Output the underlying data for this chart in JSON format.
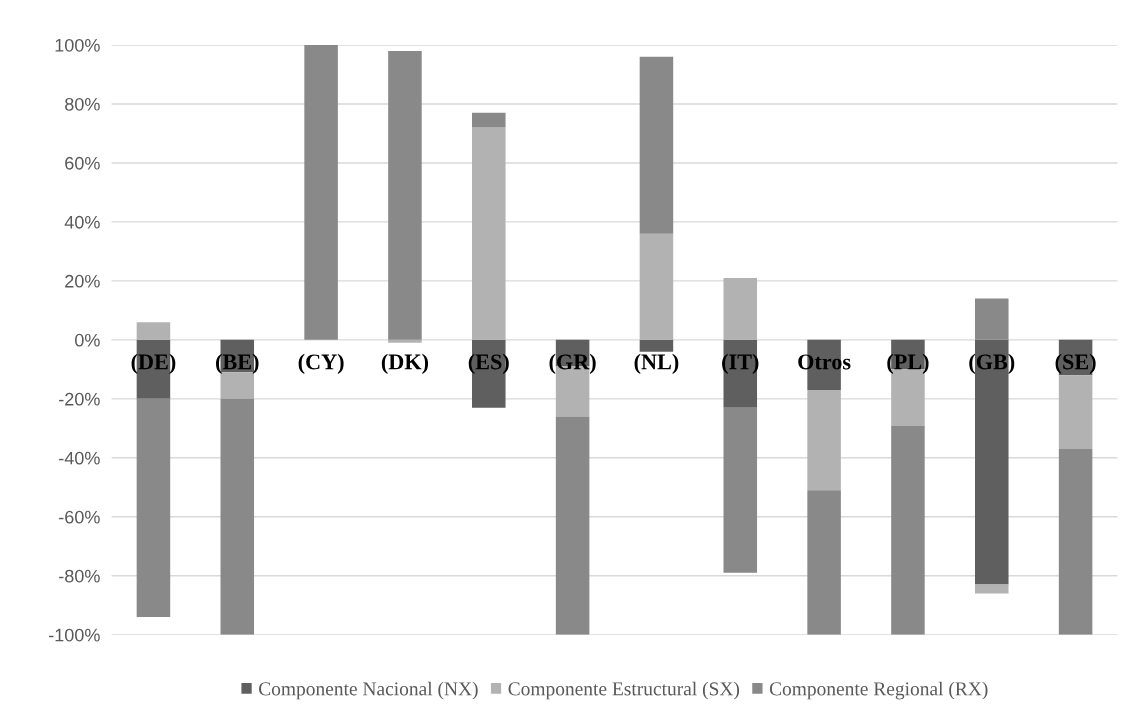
{
  "chart_data": {
    "type": "bar",
    "stacked": true,
    "categories": [
      "(DE)",
      "(BE)",
      "(CY)",
      "(DK)",
      "(ES)",
      "(GR)",
      "(NL)",
      "(IT)",
      "Otros",
      "(PL)",
      "(GB)",
      "(SE)"
    ],
    "series": [
      {
        "name": "Componente Nacional (NX)",
        "color": "#5f5f5f",
        "values": [
          -20,
          -11,
          0,
          0,
          -23,
          -9,
          -4,
          -23,
          -17,
          -10,
          -83,
          -12
        ]
      },
      {
        "name": "Componente Estructural (SX)",
        "color": "#b2b2b2",
        "values": [
          6,
          -9,
          0,
          -1,
          72,
          -17,
          36,
          21,
          -34,
          -19,
          -3,
          -25
        ]
      },
      {
        "name": "Componente Regional (RX)",
        "color": "#898989",
        "values": [
          -74,
          -80,
          100,
          98,
          5,
          -74,
          60,
          -56,
          -49,
          -71,
          14,
          -63
        ]
      }
    ],
    "ylim": [
      -100,
      100
    ],
    "yticks": [
      {
        "value": -100,
        "label": "-100%"
      },
      {
        "value": -80,
        "label": "-80%"
      },
      {
        "value": -60,
        "label": "-60%"
      },
      {
        "value": -40,
        "label": "-40%"
      },
      {
        "value": -20,
        "label": "-20%"
      },
      {
        "value": 0,
        "label": "0%"
      },
      {
        "value": 20,
        "label": "20%"
      },
      {
        "value": 40,
        "label": "40%"
      },
      {
        "value": 60,
        "label": "60%"
      },
      {
        "value": 80,
        "label": "80%"
      },
      {
        "value": 100,
        "label": "100%"
      }
    ],
    "grid": "y",
    "legend": "bottom"
  }
}
